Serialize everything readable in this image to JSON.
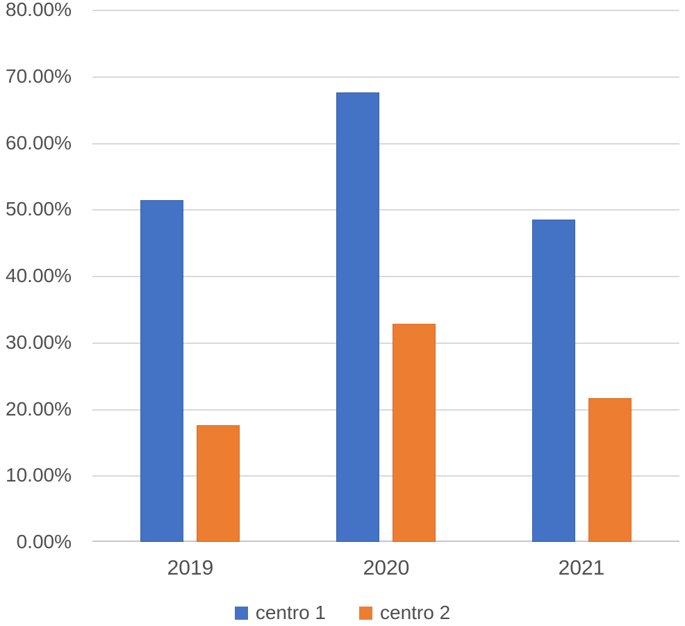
{
  "chart_data": {
    "type": "bar",
    "title": "",
    "xlabel": "",
    "ylabel": "",
    "categories": [
      "2019",
      "2020",
      "2021"
    ],
    "series": [
      {
        "name": "centro 1",
        "color": "#4472C4",
        "border_color": "#3A63AC",
        "values": [
          51.4,
          67.6,
          48.5
        ]
      },
      {
        "name": "centro 2",
        "color": "#ED7D31",
        "border_color": "#D66E27",
        "values": [
          17.5,
          32.8,
          21.6
        ]
      }
    ],
    "value_unit": "%",
    "ylim": [
      0,
      80
    ],
    "y_tick_step": 10,
    "y_tick_labels": [
      "0.00%",
      "10.00%",
      "20.00%",
      "30.00%",
      "40.00%",
      "50.00%",
      "60.00%",
      "70.00%",
      "80.00%"
    ],
    "grid": true,
    "legend_position": "bottom-center",
    "colors": {
      "gridline": "#D9D9D9",
      "axis_line": "#C6C6C6",
      "tick_text": "#4F4F4F",
      "background": "#FFFFFF"
    }
  }
}
